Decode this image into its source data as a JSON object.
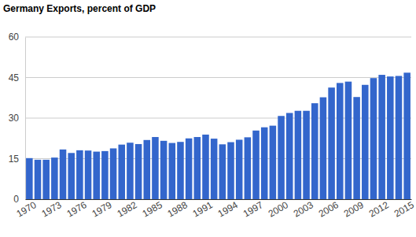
{
  "chart_data": {
    "type": "bar",
    "title": "Germany Exports, percent of GDP",
    "categories": [
      "1970",
      null,
      null,
      "1973",
      null,
      null,
      "1976",
      null,
      null,
      "1979",
      null,
      null,
      "1982",
      null,
      null,
      "1985",
      null,
      null,
      "1988",
      null,
      null,
      "1991",
      null,
      null,
      "1994",
      null,
      null,
      "1997",
      null,
      null,
      "2000",
      null,
      null,
      "2003",
      null,
      null,
      "2006",
      null,
      null,
      "2009",
      null,
      null,
      "2012",
      null,
      null,
      "2015"
    ],
    "values": [
      15.2,
      14.6,
      14.6,
      15.4,
      18.4,
      17.1,
      18.1,
      18.0,
      17.6,
      17.8,
      18.8,
      20.2,
      20.9,
      20.4,
      21.9,
      23.0,
      21.6,
      20.8,
      21.2,
      22.5,
      23.0,
      23.9,
      22.4,
      20.3,
      21.1,
      22.0,
      22.9,
      25.4,
      26.6,
      27.2,
      30.8,
      31.9,
      32.7,
      32.7,
      35.5,
      37.7,
      41.3,
      43.0,
      43.5,
      37.8,
      42.3,
      44.8,
      46.0,
      45.4,
      45.6,
      46.8
    ],
    "color": "#3366cc",
    "ylim": [
      0,
      60
    ],
    "yticks": [
      0,
      15,
      30,
      45,
      60
    ],
    "grid": true
  }
}
